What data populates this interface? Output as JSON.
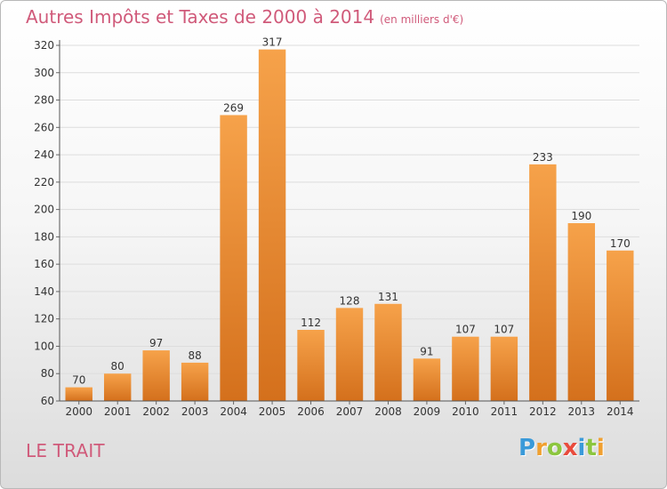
{
  "title": "Autres Impôts et Taxes de 2000 à 2014",
  "subtitle": "(en milliers d'€)",
  "commune": "LE TRAIT",
  "logo": {
    "letters": [
      "P",
      "r",
      "o",
      "x",
      "i",
      "t",
      "i"
    ],
    "colors": [
      "#3a9ad9",
      "#f0a030",
      "#8cc63f",
      "#e94b3c",
      "#3a9ad9",
      "#8cc63f",
      "#f0a030"
    ]
  },
  "bar_color_top": "#f6a24a",
  "bar_color_bottom": "#d4701c",
  "chart_data": {
    "type": "bar",
    "categories": [
      "2000",
      "2001",
      "2002",
      "2003",
      "2004",
      "2005",
      "2006",
      "2007",
      "2008",
      "2009",
      "2010",
      "2011",
      "2012",
      "2013",
      "2014"
    ],
    "values": [
      70,
      80,
      97,
      88,
      269,
      317,
      112,
      128,
      131,
      91,
      107,
      107,
      233,
      190,
      170
    ],
    "ylim": [
      60,
      320
    ],
    "yticks": [
      60,
      80,
      100,
      120,
      140,
      160,
      180,
      200,
      220,
      240,
      260,
      280,
      300,
      320
    ],
    "grid": true
  }
}
